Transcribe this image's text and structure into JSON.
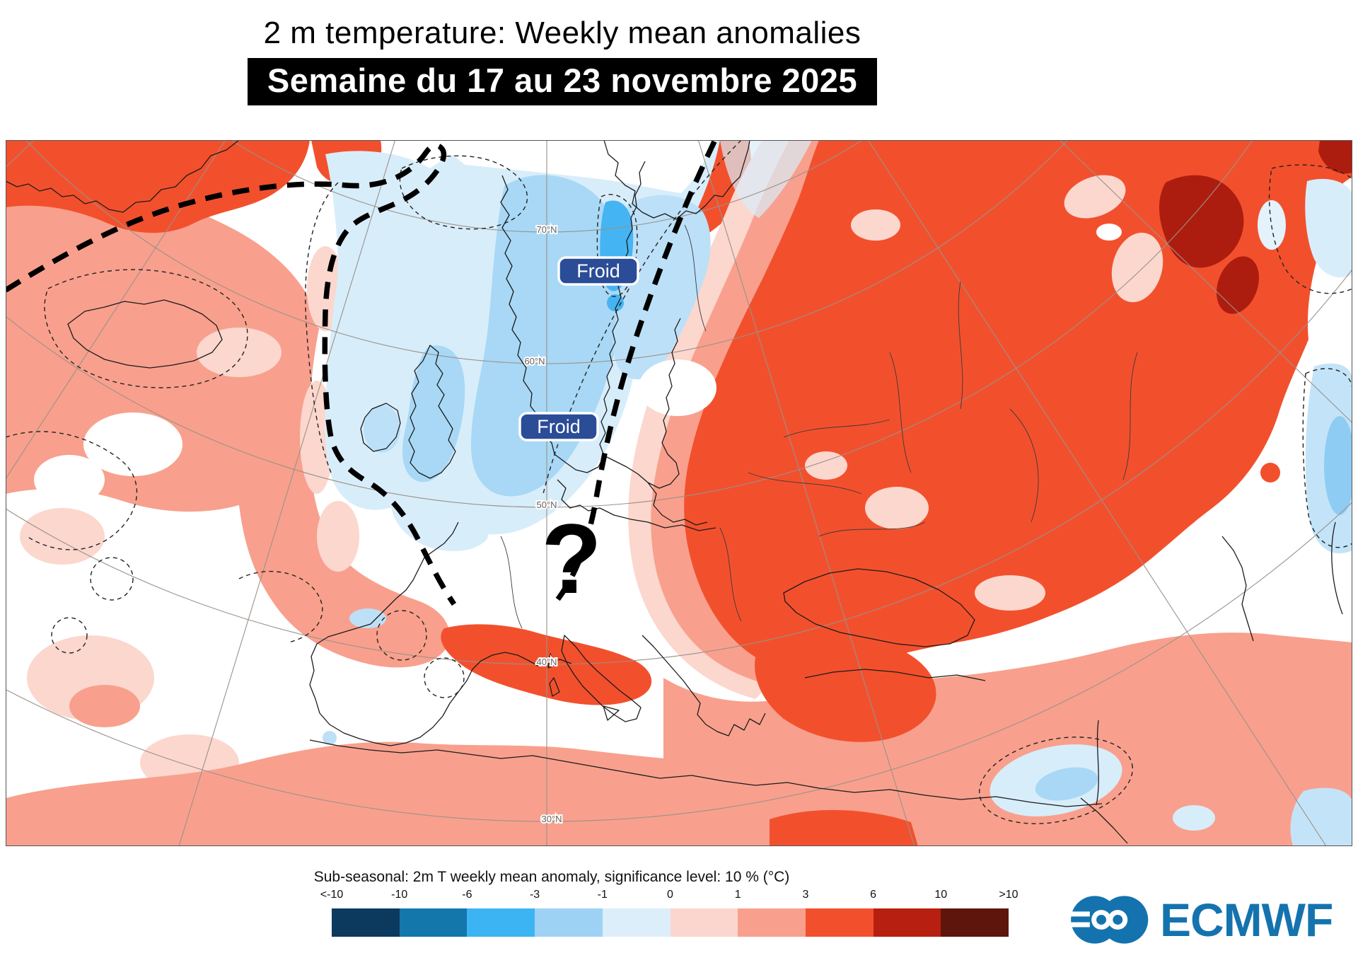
{
  "header": {
    "title": "2 m temperature: Weekly mean anomalies",
    "subtitle": "Semaine du 17 au 23 novembre 2025"
  },
  "map": {
    "annotations": {
      "froid_labels": [
        "Froid",
        "Froid"
      ],
      "question_mark": "?"
    },
    "latitude_labels": [
      "70°N",
      "60°N",
      "50°N",
      "40°N",
      "30°N"
    ]
  },
  "legend": {
    "title": "Sub-seasonal: 2m T weekly mean anomaly, significance level: 10 % (°C)",
    "tick_labels": [
      "<-10",
      "-10",
      "-6",
      "-3",
      "-1",
      "0",
      "1",
      "3",
      "6",
      "10",
      ">10"
    ],
    "band_colors": [
      "#0C3A5E",
      "#1377AC",
      "#3CB4F4",
      "#9ED2F5",
      "#DCEEFA",
      "#FBD6CE",
      "#F8A08D",
      "#F2502D",
      "#B71F10",
      "#5E150C"
    ]
  },
  "branding": {
    "logo_text": "ECMWF"
  },
  "colors": {
    "brand_blue": "#1473AE",
    "froid_badge_blue": "#2B4C97",
    "warm_anomaly": "#F2502D",
    "warm_strong": "#AD1D0F",
    "warm_light": "#F8A08D",
    "warm_faint": "#FBD7CE",
    "cold_anomaly": "#A8D8F5",
    "cold_strong": "#45B4F2",
    "cold_faint": "#D8EDFA"
  }
}
